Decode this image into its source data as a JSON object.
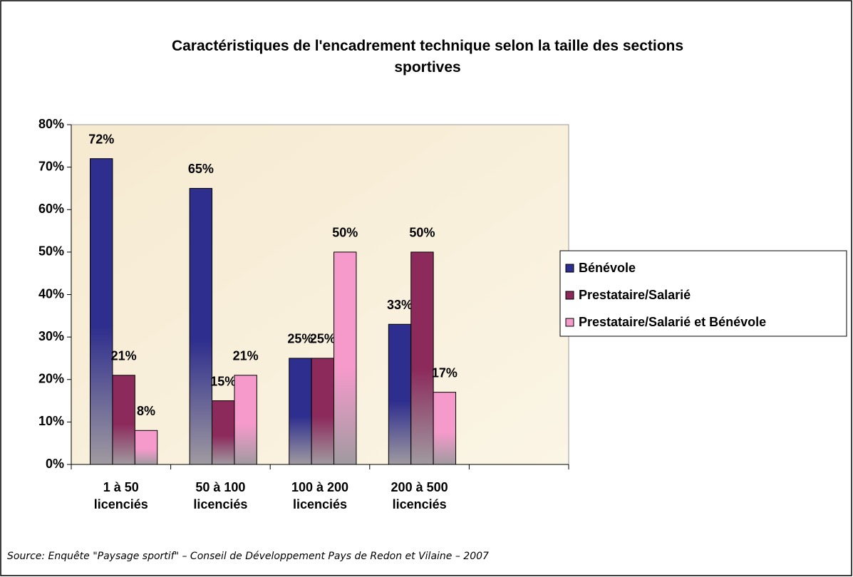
{
  "chart_data": {
    "type": "bar",
    "title": "Caractéristiques de l'encadrement technique selon la taille des sections sportives",
    "categories": [
      "1 à 50 licenciés",
      "50 à 100 licenciés",
      "100 à 200 licenciés",
      "200 à 500 licenciés",
      null
    ],
    "series": [
      {
        "name": "Bénévole",
        "color": "#2e2e8e",
        "values": [
          72,
          65,
          25,
          33,
          null
        ],
        "value_labels": [
          "72%",
          "65%",
          "25%",
          "33%",
          null
        ]
      },
      {
        "name": "Prestataire/Salarié",
        "color": "#8c2a5c",
        "values": [
          21,
          15,
          25,
          50,
          null
        ],
        "value_labels": [
          "21%",
          "15%",
          "25%",
          "50%",
          null
        ]
      },
      {
        "name": "Prestataire/Salarié et Bénévole",
        "color": "#f59acb",
        "values": [
          8,
          21,
          50,
          17,
          null
        ],
        "value_labels": [
          "8%",
          "21%",
          "50%",
          "17%",
          null
        ]
      }
    ],
    "ylim": [
      0,
      80
    ],
    "yticks": [
      {
        "value": 0,
        "label": "0%"
      },
      {
        "value": 10,
        "label": "10%"
      },
      {
        "value": 20,
        "label": "20%"
      },
      {
        "value": 30,
        "label": "30%"
      },
      {
        "value": 40,
        "label": "40%"
      },
      {
        "value": 50,
        "label": "50%"
      },
      {
        "value": 60,
        "label": "60%"
      },
      {
        "value": 70,
        "label": "70%"
      },
      {
        "value": 80,
        "label": "80%"
      }
    ],
    "legend": "right",
    "source": "Source: Enquête \"Paysage sportif\" – Conseil de Développement Pays de Redon et Vilaine – 2007"
  }
}
